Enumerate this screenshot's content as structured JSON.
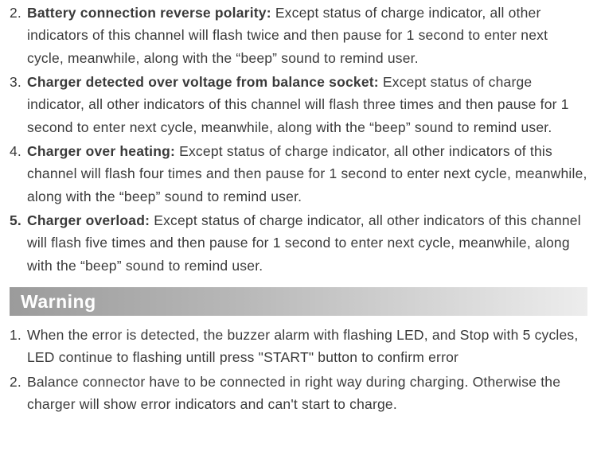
{
  "error_list": [
    {
      "num": "2.",
      "title": "Battery connection reverse polarity: ",
      "text": "Except status of charge indicator, all other indicators of this channel will flash twice and then pause for 1 second to enter next cycle, meanwhile, along with the “beep” sound to remind user."
    },
    {
      "num": "3.",
      "title": "Charger detected over voltage from balance socket: ",
      "text": "Except status of charge indicator, all other indicators of this channel will flash three times and then pause for 1 second to enter next cycle, meanwhile, along with the “beep” sound to remind user."
    },
    {
      "num": "4.",
      "title": "Charger over heating: ",
      "text": "Except status of charge indicator, all other indicators of this channel will flash four times and then pause for 1 second to enter next cycle, meanwhile, along with the “beep” sound to remind user."
    },
    {
      "num": "5.",
      "title": "Charger overload: ",
      "text": "Except status of charge indicator, all other indicators of this channel will flash five times and then pause for 1 second to enter next cycle, meanwhile, along with the “beep” sound to remind user."
    }
  ],
  "warning_header": "Warning",
  "warning_list": [
    {
      "num": "1.",
      "text": "When the error is detected, the buzzer alarm with flashing LED, and Stop with 5 cycles, LED continue to flashing untill press \"START\" button to confirm error"
    },
    {
      "num": "2.",
      "text": "Balance connector have to be connected in right way during charging. Otherwise the charger will show error indicators and can't start to charge."
    }
  ]
}
